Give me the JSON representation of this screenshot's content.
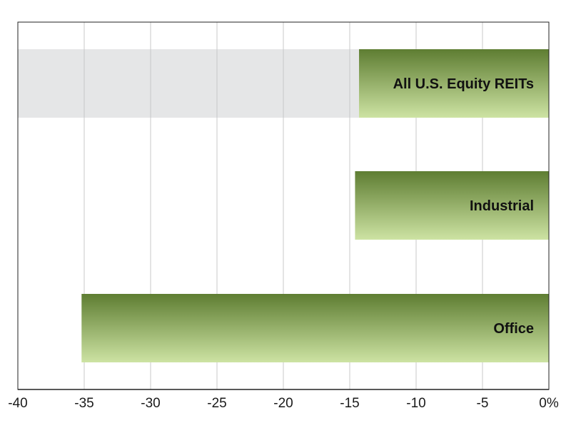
{
  "chart_data": {
    "type": "bar",
    "orientation": "horizontal",
    "categories": [
      "All U.S. Equity REITs",
      "Industrial",
      "Office"
    ],
    "values": [
      -14.3,
      -14.6,
      -35.2
    ],
    "highlight_category": "All U.S. Equity REITs",
    "xlim": [
      -40,
      0
    ],
    "x_ticks": [
      -40,
      -35,
      -30,
      -25,
      -20,
      -15,
      -10,
      -5,
      0
    ],
    "x_tick_labels": [
      "-40",
      "-35",
      "-30",
      "-25",
      "-20",
      "-15",
      "-10",
      "-5",
      "0%"
    ],
    "title": "",
    "xlabel": "",
    "ylabel": "",
    "grid": true,
    "legend": "none",
    "colors": {
      "bar_dark": "#5e7d32",
      "bar_light": "#cde3a3",
      "highlight_band": "#e5e6e7",
      "grid": "#c8c8c8",
      "frame": "#222222"
    }
  }
}
